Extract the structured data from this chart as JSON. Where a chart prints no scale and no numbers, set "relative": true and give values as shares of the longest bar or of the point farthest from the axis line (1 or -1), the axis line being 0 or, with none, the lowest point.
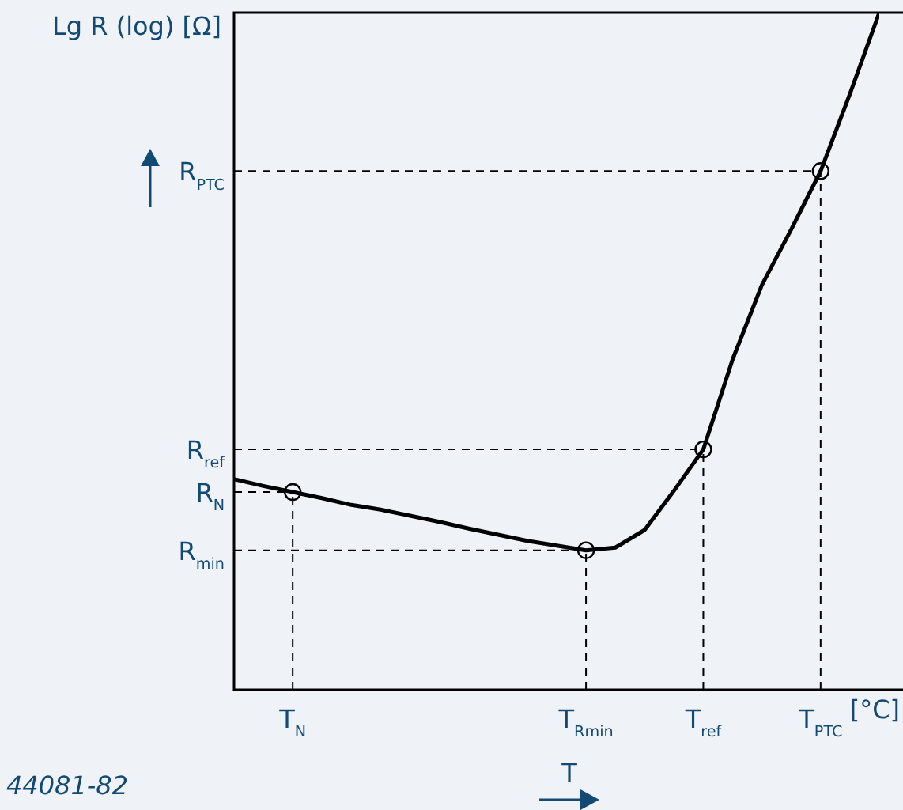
{
  "chart_data": {
    "type": "line",
    "relative": true,
    "ylabel": "Lg R (log) [Ω]",
    "xlabel": "T",
    "annotations": [
      "[°C]",
      "44081-82"
    ],
    "categories": [
      null,
      null,
      "T$_{N}$",
      null,
      null,
      null,
      null,
      null,
      null,
      null,
      null,
      null,
      "T$_{Rmin}$",
      null,
      null,
      null,
      "T$_{ref}$",
      null,
      null,
      null,
      "T$_{PTC}$",
      null,
      null
    ],
    "series": [
      {
        "color": "#000000",
        "values": [
          0.311,
          0.301,
          0.292,
          0.283,
          0.273,
          0.266,
          0.257,
          0.248,
          0.238,
          0.229,
          0.22,
          0.213,
          0.206,
          0.21,
          0.236,
          0.294,
          0.355,
          0.488,
          0.598,
          0.68,
          0.766,
          0.88,
          1
        ]
      }
    ],
    "line_style": "solid",
    "legend": false,
    "ref_lines": [
      {
        "axis": "y",
        "value": 0.766,
        "label": "R$_{PTC}$",
        "line_style": "dashed",
        "color": "#000000"
      },
      {
        "axis": "y",
        "value": 0.355,
        "label": "R$_{ref}$",
        "line_style": "dashed",
        "color": "#000000"
      },
      {
        "axis": "y",
        "value": 0.292,
        "label": "R$_{N}$",
        "line_style": "dashed",
        "color": "#000000"
      },
      {
        "axis": "y",
        "value": 0.206,
        "label": "R$_{min}$",
        "line_style": "dashed",
        "color": "#000000"
      },
      {
        "axis": "x",
        "value": "T$_{N}$",
        "line_style": "dashed",
        "color": "#000000"
      },
      {
        "axis": "x",
        "value": "T$_{Rmin}$",
        "line_style": "dashed",
        "color": "#000000"
      },
      {
        "axis": "x",
        "value": "T$_{ref}$",
        "line_style": "dashed",
        "color": "#000000"
      },
      {
        "axis": "x",
        "value": "T$_{PTC}$",
        "line_style": "dashed",
        "color": "#000000"
      }
    ]
  }
}
